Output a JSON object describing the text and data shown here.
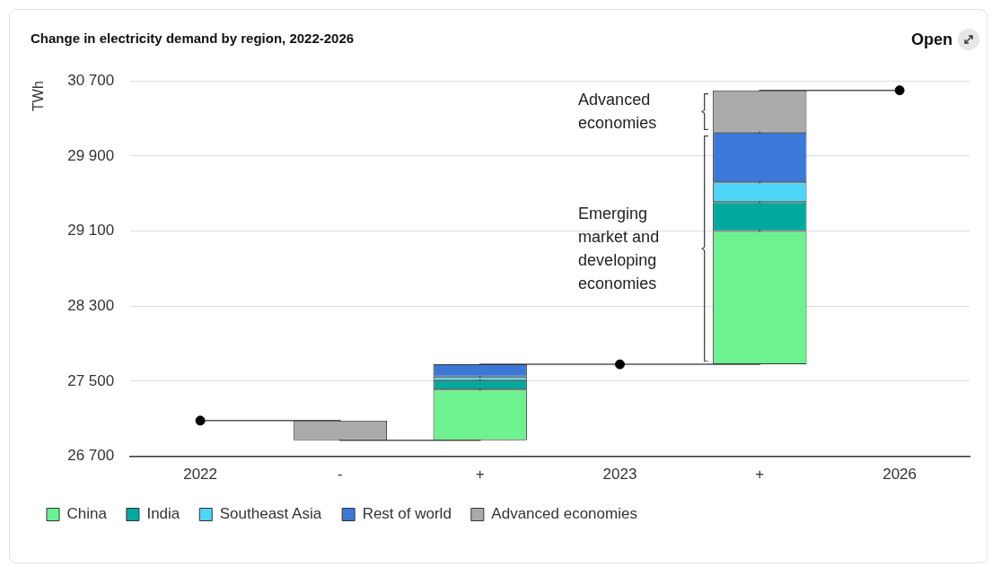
{
  "chart_data": {
    "type": "bar",
    "title": "Change in electricity demand by region, 2022-2026",
    "ylabel": "TWh",
    "categories": [
      "2022",
      "-",
      "+",
      "2023",
      "+",
      "2026"
    ],
    "series": [
      {
        "type": "step",
        "color": "#555555",
        "marker": "none",
        "values": [
          27080,
          26870,
          27680,
          27680,
          30600,
          30600
        ]
      },
      {
        "name": "China",
        "color": "#6df28f",
        "base": [
          null,
          null,
          26870,
          null,
          27680,
          null
        ],
        "values": [
          null,
          null,
          540,
          null,
          1420,
          null
        ]
      },
      {
        "name": "India",
        "color": "#00a99d",
        "base": [
          null,
          null,
          27410,
          null,
          29100,
          null
        ],
        "values": [
          null,
          null,
          100,
          null,
          310,
          null
        ]
      },
      {
        "name": "Southeast Asia",
        "color": "#4fd5f7",
        "base": [
          null,
          null,
          27510,
          null,
          29410,
          null
        ],
        "values": [
          null,
          null,
          40,
          null,
          210,
          null
        ]
      },
      {
        "name": "Rest of world",
        "color": "#3b78d8",
        "base": [
          null,
          null,
          27550,
          null,
          29620,
          null
        ],
        "values": [
          null,
          null,
          130,
          null,
          530,
          null
        ]
      },
      {
        "name": "Advanced economies",
        "color": "#aaaaaa",
        "base": [
          null,
          27080,
          null,
          null,
          30150,
          null
        ],
        "values": [
          null,
          -210,
          null,
          null,
          450,
          null
        ]
      },
      {
        "type": "scatter",
        "color": "#000000",
        "marker": "circle",
        "values": [
          27080,
          null,
          null,
          27680,
          null,
          30600
        ]
      }
    ],
    "ylim": [
      26700,
      30700
    ],
    "yticks": [
      {
        "value": 26700,
        "label": "26 700"
      },
      {
        "value": 27500,
        "label": "27 500"
      },
      {
        "value": 28300,
        "label": "28 300"
      },
      {
        "value": 29100,
        "label": "29 100"
      },
      {
        "value": 29900,
        "label": "29 900"
      },
      {
        "value": 30700,
        "label": "30 700"
      }
    ],
    "grid": "y",
    "legend": "bottom",
    "annotations": [
      "Advanced economies",
      "Emerging market and developing economies",
      "Open"
    ]
  }
}
